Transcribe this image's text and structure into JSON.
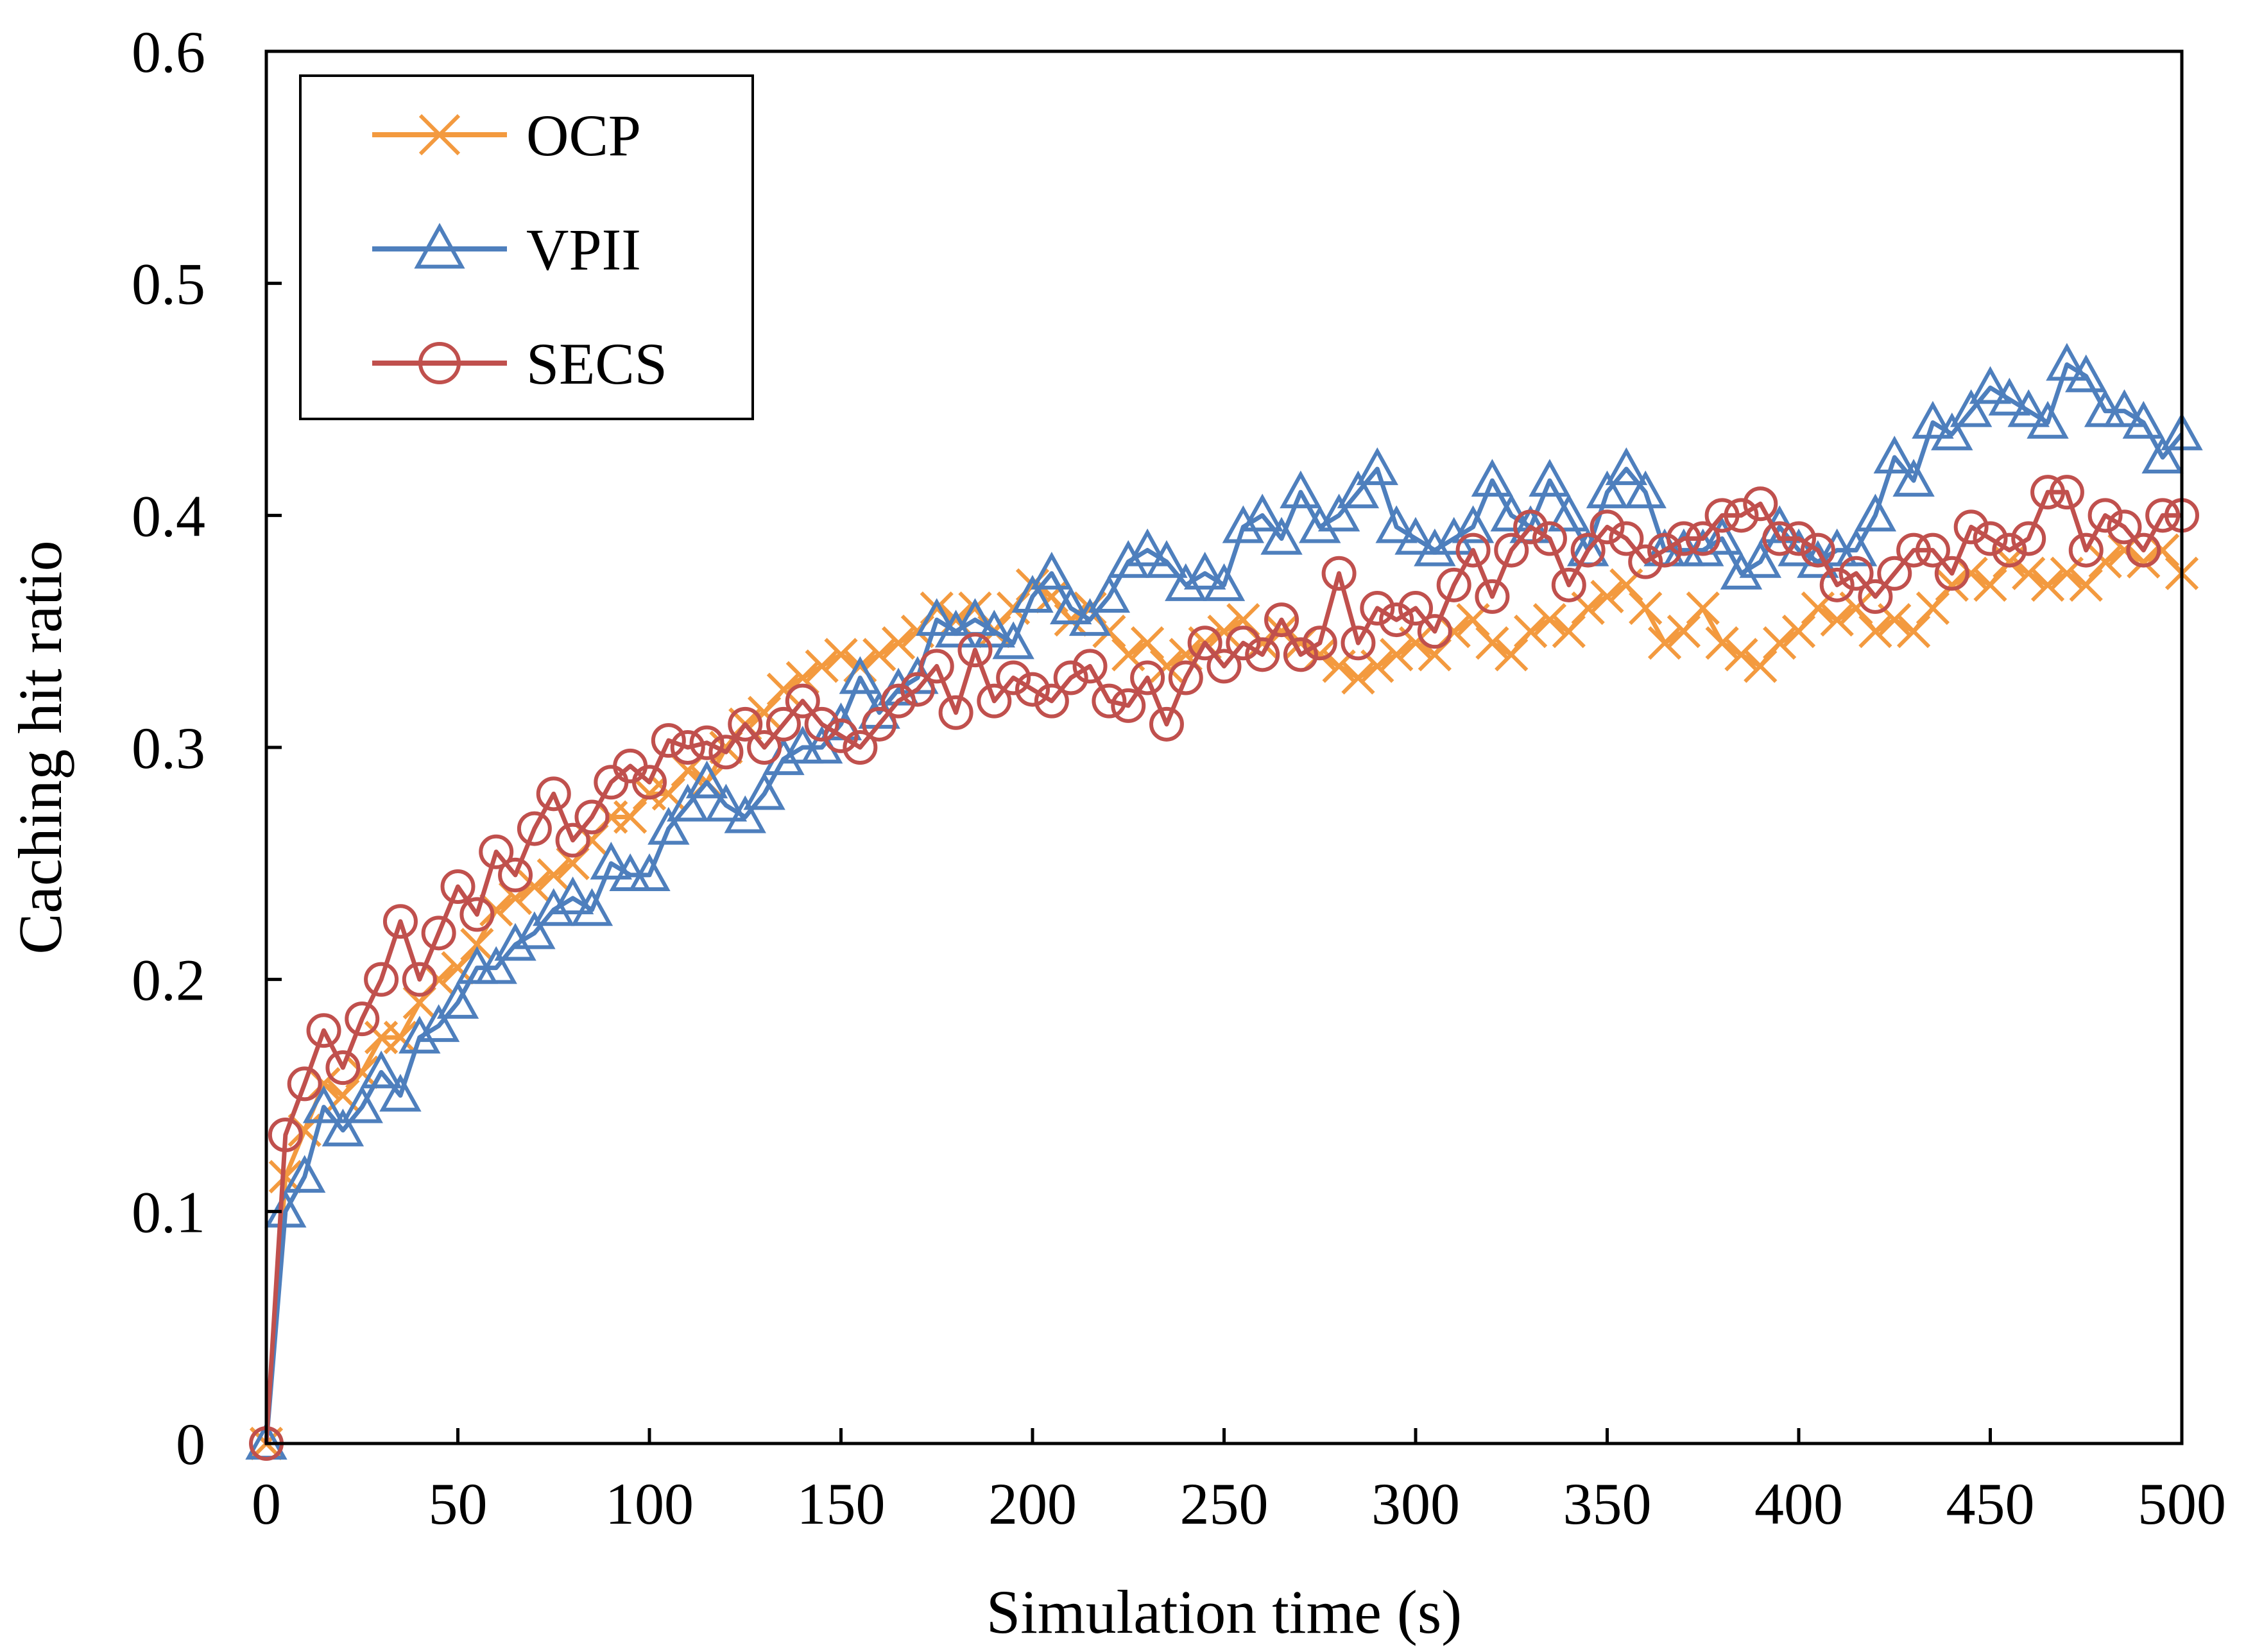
{
  "chart_data": {
    "type": "line",
    "title": "",
    "xlabel": "Simulation time (s)",
    "ylabel": "Caching hit ratio",
    "xlim": [
      0,
      500
    ],
    "ylim": [
      0,
      0.6
    ],
    "xticks": [
      0,
      50,
      100,
      150,
      200,
      250,
      300,
      350,
      400,
      450,
      500
    ],
    "yticks": [
      0,
      0.1,
      0.2,
      0.3,
      0.4,
      0.5,
      0.6
    ],
    "xtick_labels": [
      "0",
      "50",
      "100",
      "150",
      "200",
      "250",
      "300",
      "350",
      "400",
      "450",
      "500"
    ],
    "ytick_labels": [
      "0",
      "0.1",
      "0.2",
      "0.3",
      "0.4",
      "0.5",
      "0.6"
    ],
    "grid": false,
    "legend_position": "top-left",
    "x": [
      0,
      5,
      10,
      15,
      20,
      25,
      30,
      35,
      40,
      45,
      50,
      55,
      60,
      65,
      70,
      75,
      80,
      85,
      90,
      95,
      100,
      105,
      110,
      115,
      120,
      125,
      130,
      135,
      140,
      145,
      150,
      155,
      160,
      165,
      170,
      175,
      180,
      185,
      190,
      195,
      200,
      205,
      210,
      215,
      220,
      225,
      230,
      235,
      240,
      245,
      250,
      255,
      260,
      265,
      270,
      275,
      280,
      285,
      290,
      295,
      300,
      305,
      310,
      315,
      320,
      325,
      330,
      335,
      340,
      345,
      350,
      355,
      360,
      365,
      370,
      375,
      380,
      385,
      390,
      395,
      400,
      405,
      410,
      415,
      420,
      425,
      430,
      435,
      440,
      445,
      450,
      455,
      460,
      465,
      470,
      475,
      480,
      485,
      490,
      495,
      500
    ],
    "series": [
      {
        "name": "OCP",
        "color": "#f39a3f",
        "marker": "x",
        "values": [
          0,
          0.115,
          0.135,
          0.155,
          0.15,
          0.16,
          0.175,
          0.175,
          0.19,
          0.2,
          0.205,
          0.215,
          0.23,
          0.235,
          0.24,
          0.245,
          0.25,
          0.26,
          0.27,
          0.27,
          0.28,
          0.28,
          0.29,
          0.285,
          0.3,
          0.31,
          0.315,
          0.325,
          0.33,
          0.335,
          0.34,
          0.335,
          0.34,
          0.345,
          0.35,
          0.36,
          0.355,
          0.36,
          0.35,
          0.36,
          0.37,
          0.365,
          0.355,
          0.36,
          0.35,
          0.34,
          0.345,
          0.335,
          0.34,
          0.345,
          0.35,
          0.355,
          0.345,
          0.35,
          0.345,
          0.34,
          0.335,
          0.33,
          0.335,
          0.34,
          0.345,
          0.34,
          0.35,
          0.355,
          0.345,
          0.34,
          0.35,
          0.355,
          0.35,
          0.36,
          0.365,
          0.37,
          0.36,
          0.345,
          0.35,
          0.36,
          0.345,
          0.34,
          0.335,
          0.345,
          0.35,
          0.36,
          0.355,
          0.36,
          0.35,
          0.355,
          0.35,
          0.36,
          0.37,
          0.375,
          0.37,
          0.38,
          0.375,
          0.37,
          0.375,
          0.37,
          0.38,
          0.385,
          0.38,
          0.385,
          0.375
        ]
      },
      {
        "name": "VPII",
        "color": "#4e7fbd",
        "marker": "triangle",
        "values": [
          0,
          0.1,
          0.115,
          0.145,
          0.135,
          0.145,
          0.16,
          0.15,
          0.175,
          0.18,
          0.19,
          0.205,
          0.205,
          0.215,
          0.22,
          0.23,
          0.235,
          0.23,
          0.25,
          0.245,
          0.245,
          0.265,
          0.275,
          0.285,
          0.275,
          0.27,
          0.28,
          0.295,
          0.3,
          0.3,
          0.31,
          0.33,
          0.315,
          0.325,
          0.33,
          0.355,
          0.35,
          0.355,
          0.35,
          0.345,
          0.365,
          0.375,
          0.36,
          0.355,
          0.365,
          0.38,
          0.385,
          0.38,
          0.37,
          0.375,
          0.37,
          0.395,
          0.4,
          0.39,
          0.41,
          0.395,
          0.4,
          0.41,
          0.42,
          0.395,
          0.39,
          0.385,
          0.39,
          0.395,
          0.415,
          0.4,
          0.395,
          0.415,
          0.4,
          0.385,
          0.41,
          0.42,
          0.41,
          0.385,
          0.385,
          0.385,
          0.39,
          0.375,
          0.38,
          0.395,
          0.385,
          0.38,
          0.385,
          0.385,
          0.4,
          0.425,
          0.415,
          0.44,
          0.435,
          0.445,
          0.455,
          0.45,
          0.445,
          0.44,
          0.465,
          0.46,
          0.445,
          0.445,
          0.44,
          0.425,
          0.435
        ]
      },
      {
        "name": "SECS",
        "color": "#c0504d",
        "marker": "circle",
        "values": [
          0,
          0.133,
          0.155,
          0.178,
          0.162,
          0.183,
          0.2,
          0.225,
          0.2,
          0.22,
          0.24,
          0.228,
          0.255,
          0.245,
          0.265,
          0.28,
          0.26,
          0.27,
          0.285,
          0.292,
          0.285,
          0.303,
          0.3,
          0.302,
          0.298,
          0.31,
          0.3,
          0.31,
          0.32,
          0.31,
          0.305,
          0.3,
          0.31,
          0.32,
          0.325,
          0.335,
          0.315,
          0.342,
          0.32,
          0.33,
          0.325,
          0.32,
          0.33,
          0.335,
          0.32,
          0.318,
          0.33,
          0.31,
          0.33,
          0.345,
          0.335,
          0.345,
          0.34,
          0.355,
          0.34,
          0.345,
          0.375,
          0.345,
          0.36,
          0.355,
          0.36,
          0.35,
          0.37,
          0.385,
          0.365,
          0.385,
          0.395,
          0.39,
          0.37,
          0.385,
          0.395,
          0.39,
          0.38,
          0.385,
          0.39,
          0.39,
          0.4,
          0.4,
          0.405,
          0.39,
          0.39,
          0.385,
          0.37,
          0.375,
          0.365,
          0.375,
          0.385,
          0.385,
          0.375,
          0.395,
          0.39,
          0.385,
          0.39,
          0.41,
          0.41,
          0.385,
          0.4,
          0.395,
          0.385,
          0.4,
          0.4
        ]
      }
    ]
  }
}
